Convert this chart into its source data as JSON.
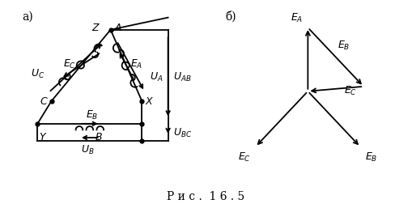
{
  "fig_width": 5.09,
  "fig_height": 2.53,
  "dpi": 100,
  "bg_color": "#ffffff",
  "label_a": "а)",
  "label_b": "б)",
  "caption": "Р и с .  1 6 . 5",
  "caption_fontsize": 10,
  "label_fontsize": 10,
  "text_fontsize": 9,
  "sub_fontsize": 7,
  "lw": 1.3
}
